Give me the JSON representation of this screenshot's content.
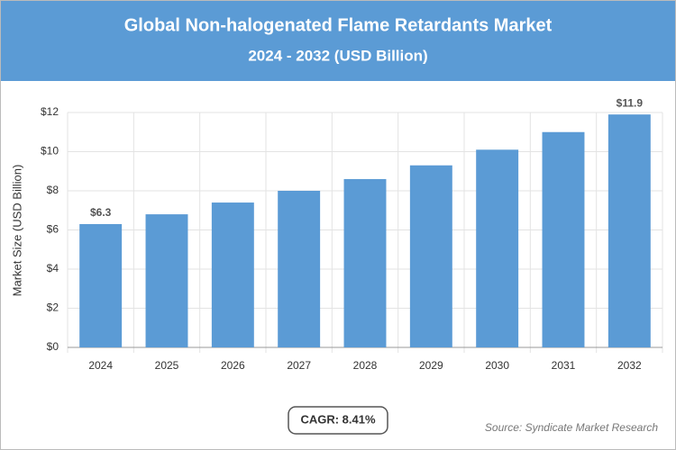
{
  "chart_data": {
    "type": "bar",
    "title": "Global Non-halogenated Flame Retardants Market",
    "subtitle": "2024 - 2032 (USD Billion)",
    "y_label": "Market Size (USD Billion)",
    "categories": [
      "2024",
      "2025",
      "2026",
      "2027",
      "2028",
      "2029",
      "2030",
      "2031",
      "2032"
    ],
    "values": [
      6.3,
      6.8,
      7.4,
      8.0,
      8.6,
      9.3,
      10.1,
      11.0,
      11.9
    ],
    "value_labels": [
      "$6.3",
      null,
      null,
      null,
      null,
      null,
      null,
      null,
      "$11.9"
    ],
    "color": "#5b9bd5",
    "ylim": [
      0,
      12
    ],
    "yticks": [
      {
        "value": 0,
        "label": "$0"
      },
      {
        "value": 2,
        "label": "$2"
      },
      {
        "value": 4,
        "label": "$4"
      },
      {
        "value": 6,
        "label": "$6"
      },
      {
        "value": 8,
        "label": "$8"
      },
      {
        "value": 10,
        "label": "$10"
      },
      {
        "value": 12,
        "label": "$12"
      }
    ],
    "grid": true,
    "annotation": "CAGR: 8.41%",
    "source": "Source: Syndicate Market Research"
  }
}
